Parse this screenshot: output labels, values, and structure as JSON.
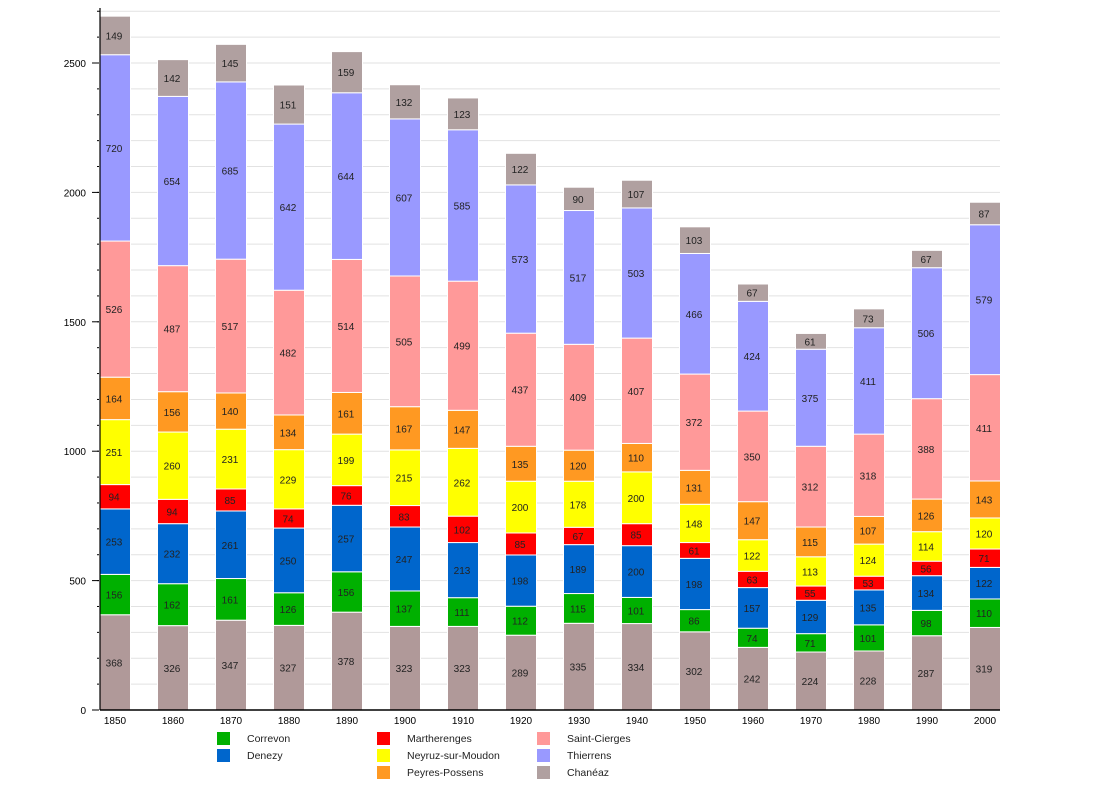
{
  "chart_data": {
    "type": "bar",
    "stacked": true,
    "categories": [
      "1850",
      "1860",
      "1870",
      "1880",
      "1890",
      "1900",
      "1910",
      "1920",
      "1930",
      "1940",
      "1950",
      "1960",
      "1970",
      "1980",
      "1990",
      "2000"
    ],
    "ylim": [
      0,
      2700
    ],
    "yticks": [
      "0",
      "500",
      "1000",
      "1500",
      "2000",
      "2500"
    ],
    "grid": true,
    "legend_position": "bottom",
    "series": [
      {
        "color": "#b09999",
        "values": [
          368,
          326,
          347,
          327,
          378,
          323,
          323,
          289,
          335,
          334,
          302,
          242,
          224,
          228,
          287,
          319
        ]
      },
      {
        "name": "Correvon",
        "color": "#00b000",
        "values": [
          156,
          162,
          161,
          126,
          156,
          137,
          111,
          112,
          115,
          101,
          86,
          74,
          71,
          101,
          98,
          110
        ]
      },
      {
        "name": "Denezy",
        "color": "#0066cc",
        "values": [
          253,
          232,
          261,
          250,
          257,
          247,
          213,
          198,
          189,
          200,
          198,
          157,
          129,
          135,
          134,
          122
        ]
      },
      {
        "name": "Martherenges",
        "color": "#ff0000",
        "values": [
          94,
          94,
          85,
          74,
          76,
          83,
          102,
          85,
          67,
          85,
          61,
          63,
          55,
          53,
          56,
          71
        ]
      },
      {
        "name": "Neyruz-sur-Moudon",
        "color": "#ffff00",
        "values": [
          251,
          260,
          231,
          229,
          199,
          215,
          262,
          200,
          178,
          200,
          148,
          122,
          113,
          124,
          114,
          120
        ]
      },
      {
        "name": "Peyres-Possens",
        "color": "#ff9922",
        "values": [
          164,
          156,
          140,
          134,
          161,
          167,
          147,
          135,
          120,
          110,
          131,
          147,
          115,
          107,
          126,
          143
        ]
      },
      {
        "name": "Saint-Cierges",
        "color": "#ff9999",
        "values": [
          526,
          487,
          517,
          482,
          514,
          505,
          499,
          437,
          409,
          407,
          372,
          350,
          312,
          318,
          388,
          411
        ]
      },
      {
        "name": "Thierrens",
        "color": "#9999ff",
        "values": [
          720,
          654,
          685,
          642,
          644,
          607,
          585,
          573,
          517,
          503,
          466,
          424,
          375,
          411,
          506,
          579
        ]
      },
      {
        "name": "Chanéaz",
        "color": "#b0a0a0",
        "values": [
          149,
          142,
          145,
          151,
          159,
          132,
          123,
          122,
          90,
          107,
          103,
          67,
          61,
          73,
          67,
          87
        ]
      }
    ],
    "legend_order": [
      1,
      2,
      3,
      4,
      5,
      6,
      7,
      8
    ]
  }
}
